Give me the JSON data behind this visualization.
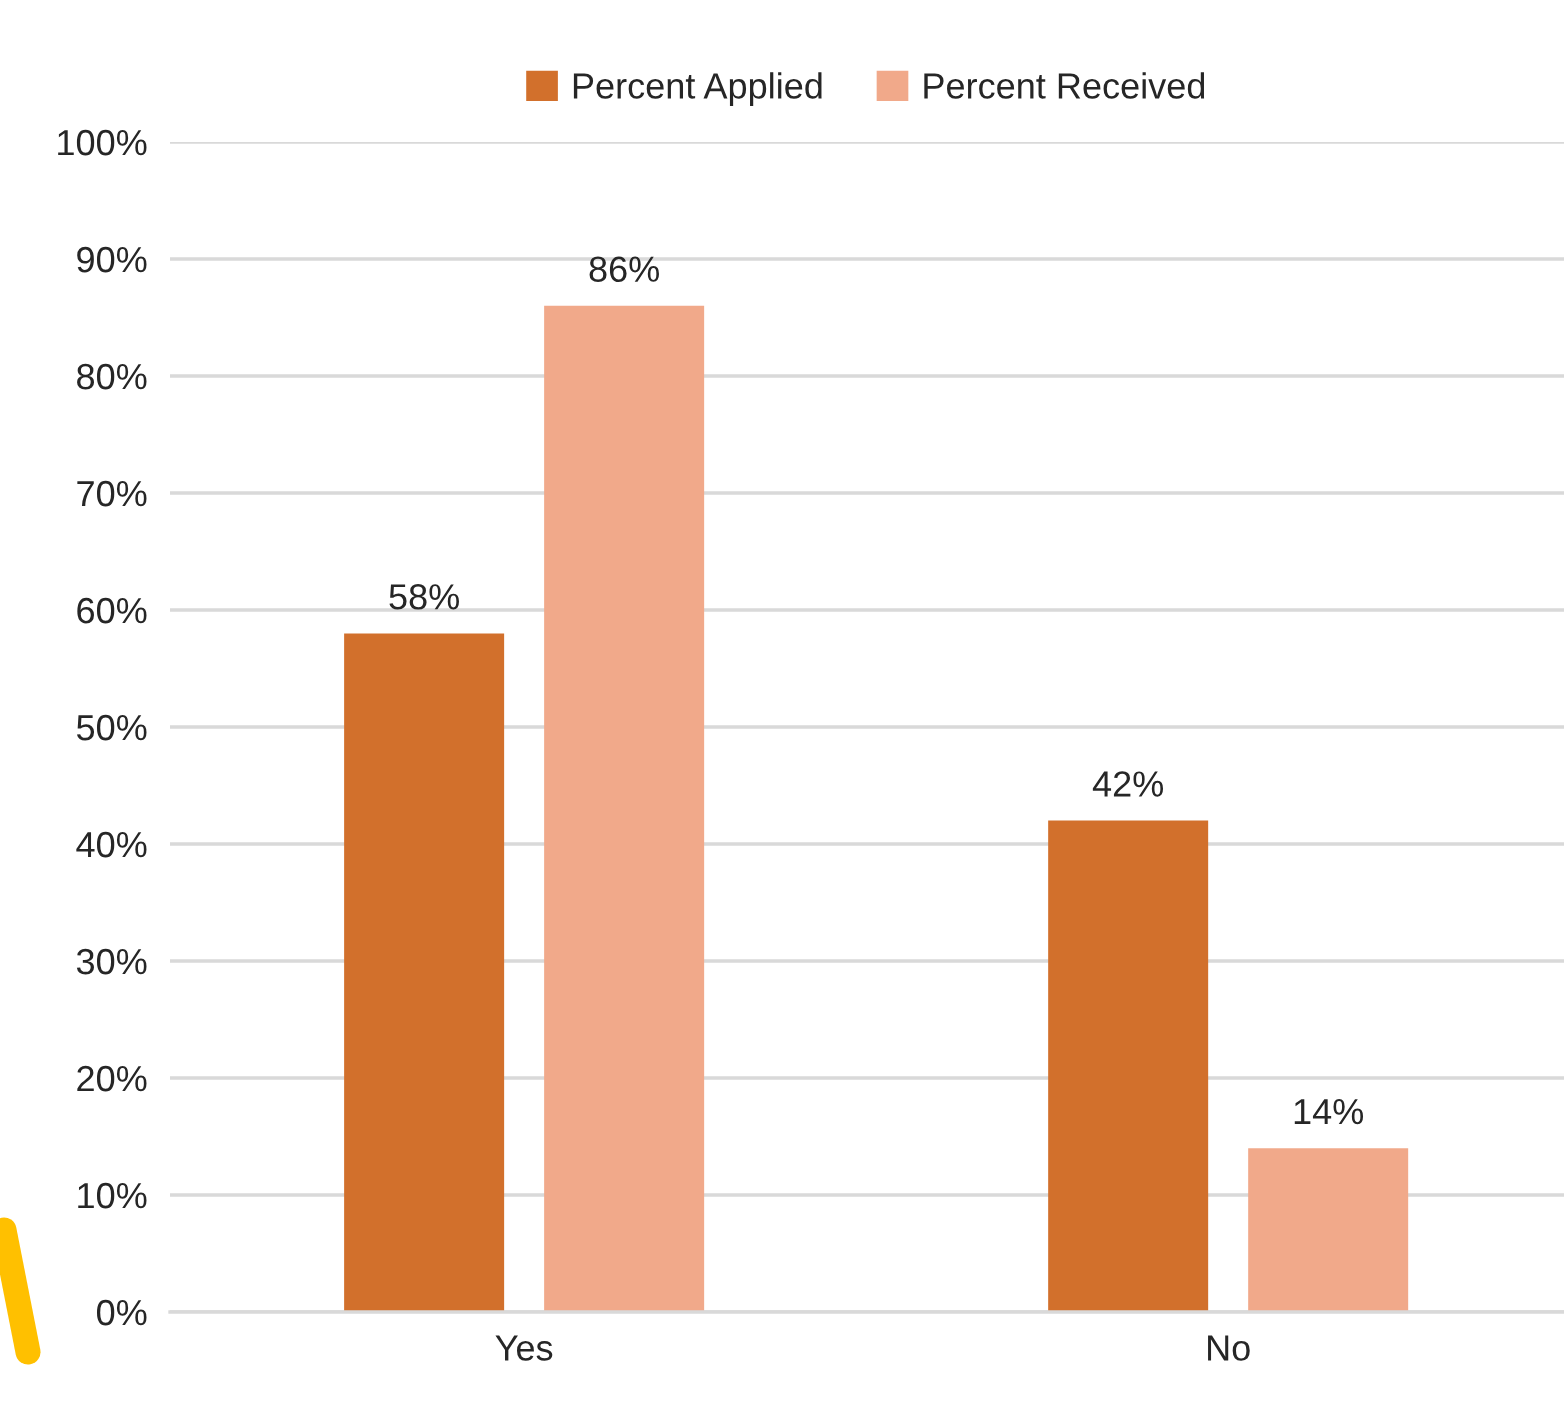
{
  "chart_data": {
    "type": "bar",
    "categories": [
      "Yes",
      "No"
    ],
    "series": [
      {
        "name": "Percent Applied",
        "color": "#d2702c",
        "values": [
          58,
          42
        ],
        "value_labels": [
          "58%",
          "42%"
        ]
      },
      {
        "name": "Percent Received",
        "color": "#f1a98a",
        "values": [
          86,
          14
        ],
        "value_labels": [
          "86%",
          "14%"
        ]
      }
    ],
    "ylim": [
      0,
      100
    ],
    "yticks": [
      {
        "value": 0,
        "label": "0%"
      },
      {
        "value": 10,
        "label": "10%"
      },
      {
        "value": 20,
        "label": "20%"
      },
      {
        "value": 30,
        "label": "30%"
      },
      {
        "value": 40,
        "label": "40%"
      },
      {
        "value": 50,
        "label": "50%"
      },
      {
        "value": 60,
        "label": "60%"
      },
      {
        "value": 70,
        "label": "70%"
      },
      {
        "value": 80,
        "label": "80%"
      },
      {
        "value": 90,
        "label": "90%"
      },
      {
        "value": 100,
        "label": "100%"
      }
    ],
    "grid": "y",
    "legend": "top"
  }
}
